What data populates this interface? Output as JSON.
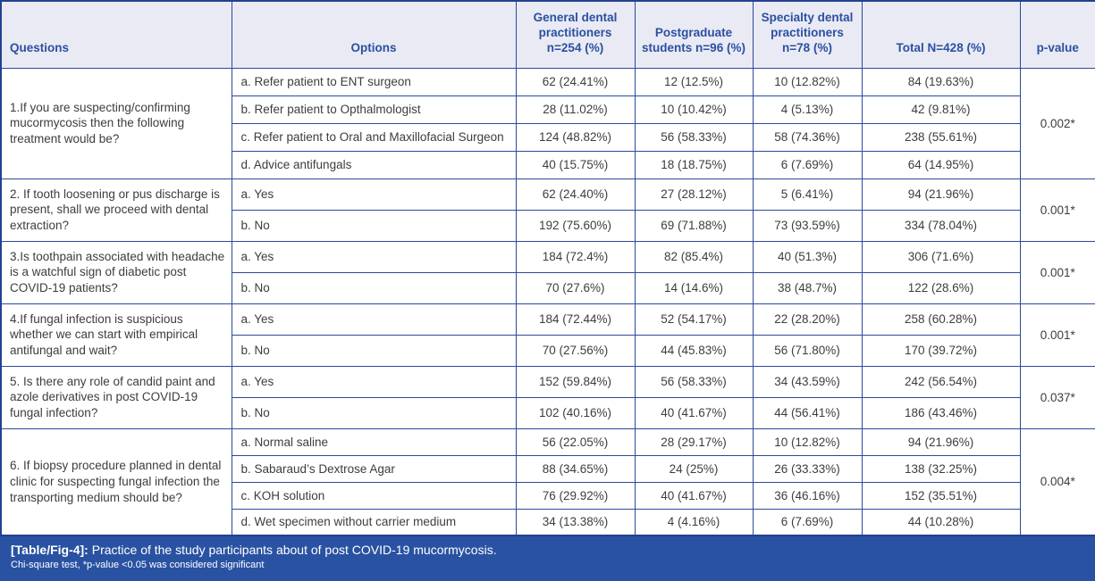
{
  "colors": {
    "border": "#2b4a9c",
    "outer_border": "#23418f",
    "header_bg": "#e9eaf4",
    "header_text": "#2b50a0",
    "body_text": "#3d3d3d",
    "footer_bg": "#2a52a2",
    "footer_text": "#ffffff"
  },
  "header": {
    "columns": [
      "Questions",
      "Options",
      "General dental practitioners n=254 (%)",
      "Postgraduate students n=96 (%)",
      "Specialty dental practitioners n=78 (%)",
      "Total N=428 (%)",
      "p-value"
    ]
  },
  "table": {
    "blocks": [
      {
        "question": "1.If you are suspecting/confirming mucormycosis then the following treatment would be?",
        "p_value": "0.002*",
        "rows": [
          {
            "option": "a. Refer patient to ENT surgeon",
            "values": [
              "62 (24.41%)",
              "12 (12.5%)",
              "10 (12.82%)",
              "84 (19.63%)"
            ]
          },
          {
            "option": "b. Refer patient to Opthalmologist",
            "values": [
              "28 (11.02%)",
              "10 (10.42%)",
              "4 (5.13%)",
              "42 (9.81%)"
            ]
          },
          {
            "option": "c. Refer patient to Oral and Maxillofacial Surgeon",
            "values": [
              "124 (48.82%)",
              "56 (58.33%)",
              "58 (74.36%)",
              "238 (55.61%)"
            ]
          },
          {
            "option": "d. Advice antifungals",
            "values": [
              "40 (15.75%)",
              "18 (18.75%)",
              "6 (7.69%)",
              "64 (14.95%)"
            ]
          }
        ]
      },
      {
        "question": "2. If tooth loosening or pus discharge is present, shall we proceed with dental extraction?",
        "p_value": "0.001*",
        "rows": [
          {
            "option": "a. Yes",
            "values": [
              "62 (24.40%)",
              "27 (28.12%)",
              "5 (6.41%)",
              "94 (21.96%)"
            ]
          },
          {
            "option": "b. No",
            "values": [
              "192 (75.60%)",
              "69 (71.88%)",
              "73 (93.59%)",
              "334 (78.04%)"
            ]
          }
        ]
      },
      {
        "question": "3.Is toothpain associated with headache is a watchful sign of diabetic post COVID-19 patients?",
        "p_value": "0.001*",
        "rows": [
          {
            "option": "a. Yes",
            "values": [
              "184 (72.4%)",
              "82 (85.4%)",
              "40 (51.3%)",
              "306 (71.6%)"
            ]
          },
          {
            "option": "b. No",
            "values": [
              "70 (27.6%)",
              "14 (14.6%)",
              "38 (48.7%)",
              "122 (28.6%)"
            ]
          }
        ]
      },
      {
        "question": "4.If fungal infection is suspicious whether we can start with empirical antifungal and wait?",
        "p_value": "0.001*",
        "rows": [
          {
            "option": "a. Yes",
            "values": [
              "184 (72.44%)",
              "52 (54.17%)",
              "22 (28.20%)",
              "258 (60.28%)"
            ]
          },
          {
            "option": "b. No",
            "values": [
              "70 (27.56%)",
              "44 (45.83%)",
              "56 (71.80%)",
              "170 (39.72%)"
            ]
          }
        ]
      },
      {
        "question": "5. Is there any role of candid paint and azole derivatives in post COVID-19 fungal infection?",
        "p_value": "0.037*",
        "rows": [
          {
            "option": "a. Yes",
            "values": [
              "152 (59.84%)",
              "56 (58.33%)",
              "34 (43.59%)",
              "242 (56.54%)"
            ]
          },
          {
            "option": "b. No",
            "values": [
              "102 (40.16%)",
              "40 (41.67%)",
              "44 (56.41%)",
              "186 (43.46%)"
            ]
          }
        ]
      },
      {
        "question": "6. If biopsy procedure planned in dental clinic for suspecting fungal infection the transporting medium should be?",
        "p_value": "0.004*",
        "rows": [
          {
            "option": "a. Normal saline",
            "values": [
              "56 (22.05%)",
              "28 (29.17%)",
              "10 (12.82%)",
              "94 (21.96%)"
            ]
          },
          {
            "option": "b. Sabaraud’s Dextrose Agar",
            "values": [
              "88 (34.65%)",
              "24 (25%)",
              "26 (33.33%)",
              "138 (32.25%)"
            ]
          },
          {
            "option": "c. KOH solution",
            "values": [
              "76 (29.92%)",
              "40 (41.67%)",
              "36 (46.16%)",
              "152 (35.51%)"
            ]
          },
          {
            "option": "d. Wet specimen without carrier medium",
            "values": [
              "34 (13.38%)",
              "4 (4.16%)",
              "6 (7.69%)",
              "44 (10.28%)"
            ]
          }
        ]
      }
    ]
  },
  "footer": {
    "label": "[Table/Fig-4]:",
    "caption": " Practice of the study participants about of post COVID-19 mucormycosis.",
    "note": "Chi-square test, *p-value <0.05 was considered significant"
  }
}
